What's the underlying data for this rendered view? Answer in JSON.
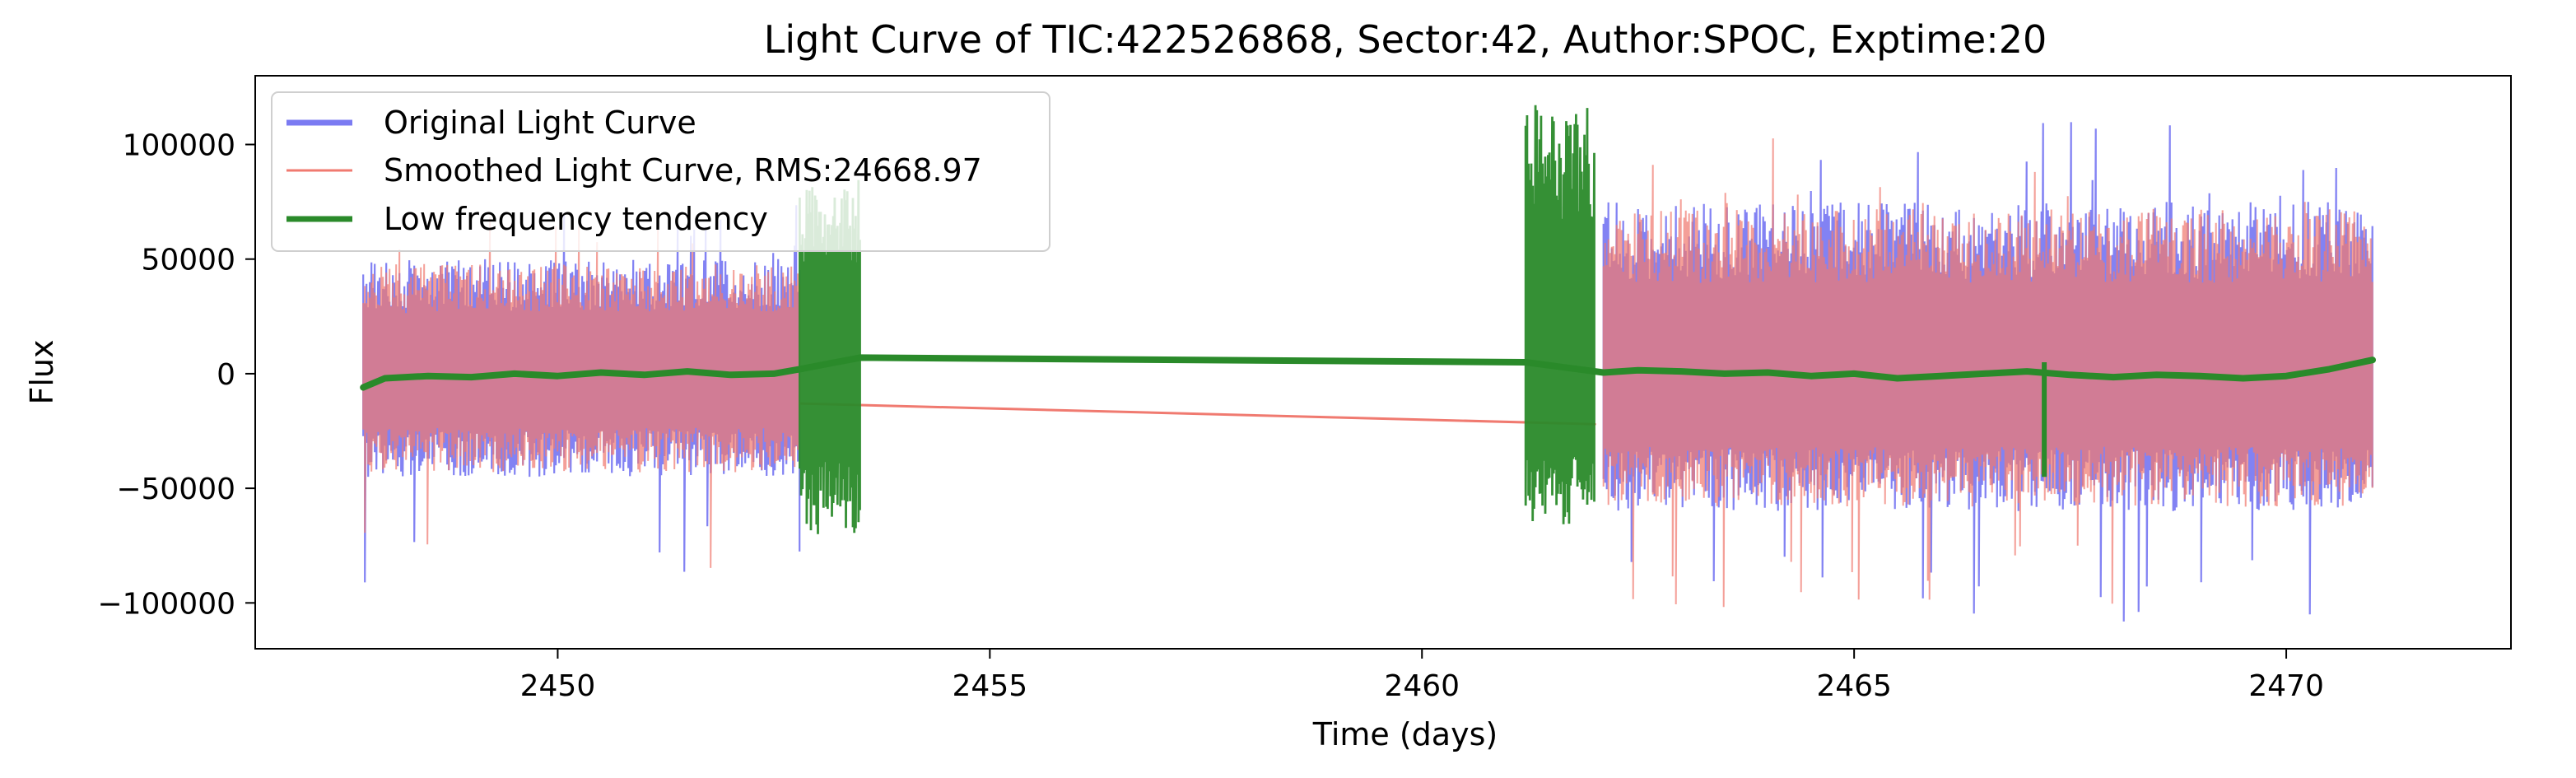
{
  "chart_data": {
    "type": "line",
    "title": "Light Curve of TIC:422526868, Sector:42, Author:SPOC, Exptime:20",
    "xlabel": "Time (days)",
    "ylabel": "Flux",
    "xlim": [
      2446.5,
      2472.6
    ],
    "ylim": [
      -120000,
      130000
    ],
    "x_ticks": [
      2450,
      2455,
      2460,
      2465,
      2470
    ],
    "x_tick_labels": [
      "2450",
      "2455",
      "2460",
      "2465",
      "2470"
    ],
    "y_ticks": [
      -100000,
      -50000,
      0,
      50000,
      100000
    ],
    "y_tick_labels": [
      "−100000",
      "−50000",
      "0",
      "50000",
      "100000"
    ],
    "grid": false,
    "legend_position": "upper-left",
    "series": [
      {
        "name": "Original Light Curve",
        "color": "#7b7bf2",
        "style": "noise-band",
        "segments": [
          {
            "x_start": 2447.75,
            "x_end": 2452.8,
            "upper": 50000,
            "lower": -45000,
            "peak_high": 75000,
            "peak_low": -92000
          },
          {
            "x_start": 2462.1,
            "x_end": 2471.0,
            "upper": 75000,
            "lower": -60000,
            "peak_high": 110000,
            "peak_low": -110000
          }
        ]
      },
      {
        "name": "Smoothed Light Curve, RMS:24668.97",
        "color": "#f07a70",
        "style": "noise-band-and-trend",
        "segments": [
          {
            "x_start": 2447.75,
            "x_end": 2452.8,
            "upper": 48000,
            "lower": -43000,
            "peak_high": 72000,
            "peak_low": -88000
          },
          {
            "x_start": 2462.1,
            "x_end": 2471.0,
            "upper": 72000,
            "lower": -58000,
            "peak_high": 105000,
            "peak_low": -105000
          }
        ],
        "trend_points": [
          [
            2452.8,
            -13000
          ],
          [
            2462.0,
            -22000
          ]
        ]
      },
      {
        "name": "Low frequency tendency",
        "color": "#2a8a2a",
        "style": "trend-with-noise",
        "points": [
          [
            2447.75,
            -6000
          ],
          [
            2448.0,
            -2000
          ],
          [
            2448.5,
            -1000
          ],
          [
            2449.0,
            -1500
          ],
          [
            2449.5,
            0
          ],
          [
            2450.0,
            -1000
          ],
          [
            2450.5,
            500
          ],
          [
            2451.0,
            -500
          ],
          [
            2451.5,
            1000
          ],
          [
            2452.0,
            -500
          ],
          [
            2452.5,
            0
          ],
          [
            2452.8,
            2000
          ],
          [
            2453.5,
            7000
          ],
          [
            2461.2,
            5000
          ],
          [
            2462.1,
            500
          ],
          [
            2462.5,
            1500
          ],
          [
            2463.0,
            1000
          ],
          [
            2463.5,
            0
          ],
          [
            2464.0,
            500
          ],
          [
            2464.5,
            -1000
          ],
          [
            2465.0,
            0
          ],
          [
            2465.5,
            -2000
          ],
          [
            2466.0,
            -1000
          ],
          [
            2466.5,
            0
          ],
          [
            2467.0,
            1000
          ],
          [
            2467.5,
            -500
          ],
          [
            2468.0,
            -1500
          ],
          [
            2468.5,
            -500
          ],
          [
            2469.0,
            -1000
          ],
          [
            2469.5,
            -2000
          ],
          [
            2470.0,
            -1000
          ],
          [
            2470.5,
            2000
          ],
          [
            2471.0,
            6000
          ]
        ],
        "noise_segments": [
          {
            "x_start": 2452.8,
            "x_end": 2453.5,
            "upper": 85000,
            "lower": -70000
          },
          {
            "x_start": 2461.2,
            "x_end": 2462.0,
            "upper": 118000,
            "lower": -66000
          }
        ],
        "spikes": [
          {
            "x": 2467.2,
            "low": -45000,
            "high": 5000
          }
        ]
      }
    ]
  }
}
